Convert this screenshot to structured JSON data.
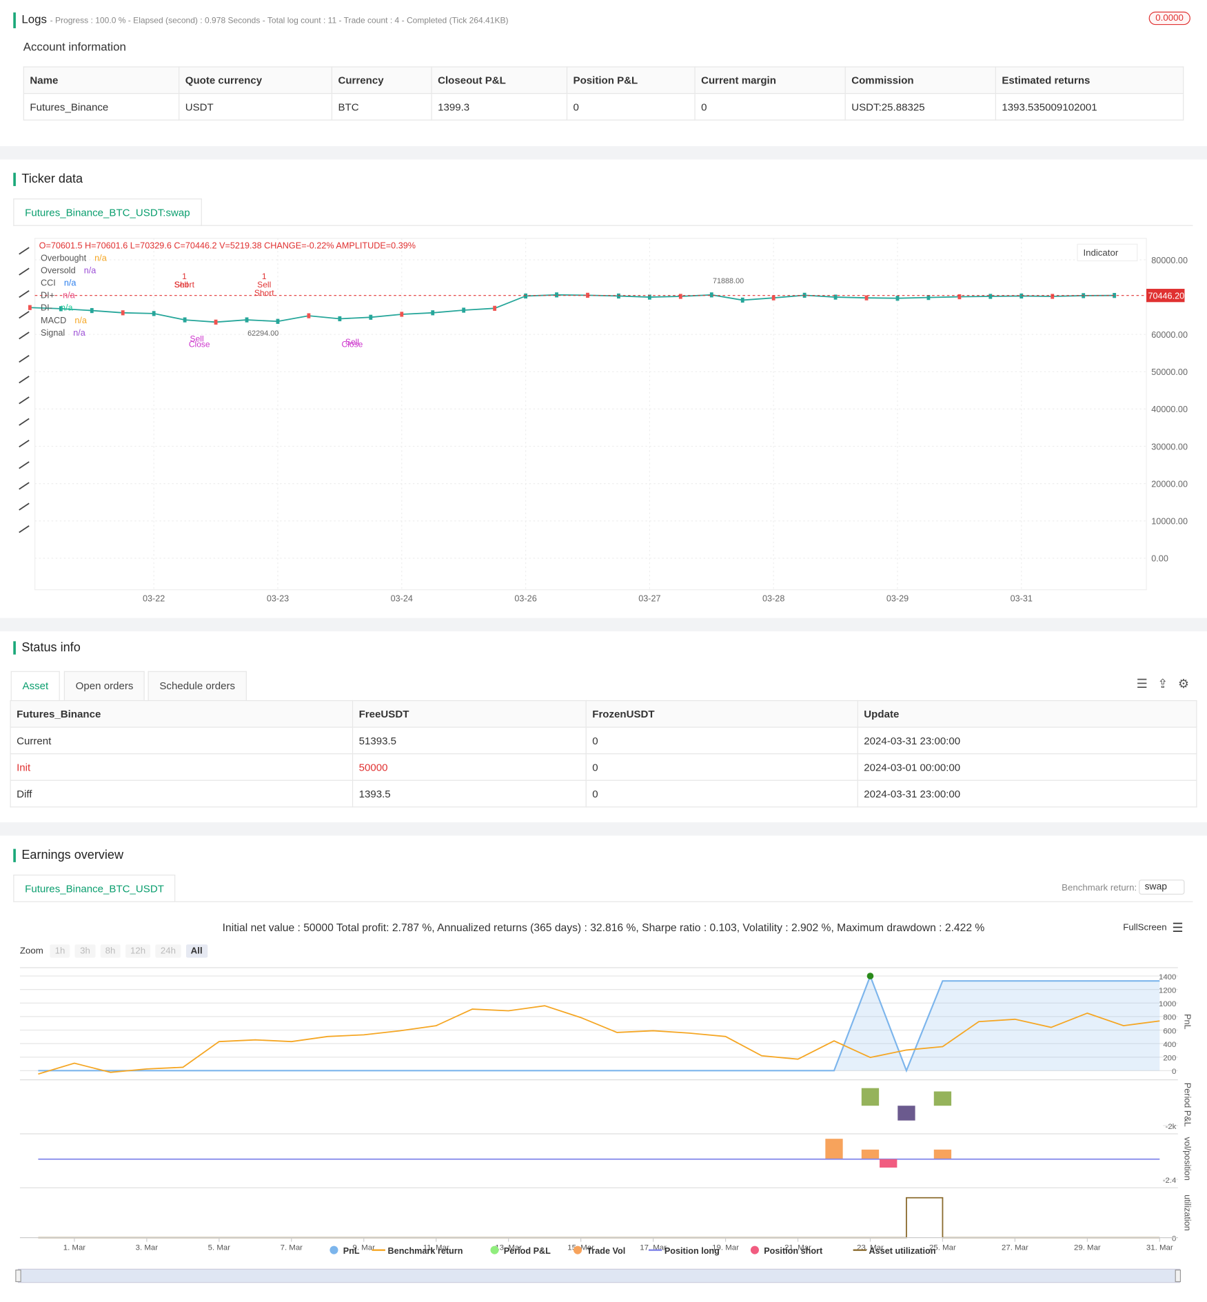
{
  "logs": {
    "title": "Logs",
    "summary": "- Progress : 100.0 % - Elapsed (second) : 0.978  Seconds - Total log count : 11 - Trade count : 4 - Completed (Tick 264.41KB)",
    "badge": "0.0000"
  },
  "account": {
    "title": "Account information",
    "columns": [
      "Name",
      "Quote currency",
      "Currency",
      "Closeout P&L",
      "Position P&L",
      "Current margin",
      "Commission",
      "Estimated returns"
    ],
    "rows": [
      [
        "Futures_Binance",
        "USDT",
        "BTC",
        "1399.3",
        "0",
        "0",
        "USDT:25.88325",
        "1393.535009102001"
      ]
    ]
  },
  "ticker": {
    "title": "Ticker data",
    "tab": "Futures_Binance_BTC_USDT:swap",
    "ohlc": "O=70601.5 H=70601.6 L=70329.6 C=70446.2 V=5219.38 CHANGE=-0.22% AMPLITUDE=0.39%",
    "indicator_button": "Indicator",
    "legend": [
      {
        "name": "Overbought",
        "value": "n/a",
        "color": "#f5a623"
      },
      {
        "name": "Oversold",
        "value": "n/a",
        "color": "#9c4fd6"
      },
      {
        "name": "CCI",
        "value": "n/a",
        "color": "#2f80ed"
      },
      {
        "name": "DI+",
        "value": "n/a",
        "color": "#e64980"
      },
      {
        "name": "DI-",
        "value": "n/a",
        "color": "#20c997"
      },
      {
        "name": "MACD",
        "value": "n/a",
        "color": "#f5a623"
      },
      {
        "name": "Signal",
        "value": "n/a",
        "color": "#9c4fd6"
      }
    ]
  },
  "status": {
    "title": "Status info",
    "tabs": [
      "Asset",
      "Open orders",
      "Schedule orders"
    ],
    "columns": [
      "Futures_Binance",
      "FreeUSDT",
      "FrozenUSDT",
      "Update"
    ],
    "rows": [
      [
        "Current",
        "51393.5",
        "0",
        "2024-03-31 23:00:00"
      ],
      [
        "Init",
        "50000",
        "0",
        "2024-03-01 00:00:00"
      ],
      [
        "Diff",
        "1393.5",
        "0",
        "2024-03-31 23:00:00"
      ]
    ]
  },
  "earnings": {
    "title": "Earnings overview",
    "tab": "Futures_Binance_BTC_USDT",
    "benchmark_label": "Benchmark return:",
    "benchmark_value": "swap",
    "fullscreen": "FullScreen",
    "zoom_label": "Zoom",
    "zoom_options": [
      "1h",
      "3h",
      "8h",
      "12h",
      "24h",
      "All"
    ]
  },
  "chart_data": [
    {
      "type": "line",
      "color": "#26a69a",
      "categories": [
        null,
        null,
        null,
        null,
        "03-22",
        null,
        null,
        null,
        "03-23",
        null,
        null,
        null,
        "03-24",
        null,
        null,
        null,
        "03-26",
        null,
        null,
        null,
        "03-27",
        null,
        null,
        null,
        "03-28",
        null,
        null,
        null,
        "03-29",
        null,
        null,
        null,
        "03-31",
        null,
        null,
        null
      ],
      "values": [
        67200,
        66900,
        66400,
        65800,
        65600,
        63900,
        63300,
        63900,
        63500,
        65000,
        64200,
        64600,
        65400,
        65800,
        66500,
        67000,
        70300,
        70600,
        70500,
        70300,
        70000,
        70200,
        70600,
        69200,
        69800,
        70500,
        70000,
        69800,
        69700,
        69900,
        70100,
        70200,
        70300,
        70200,
        70400,
        70446.2
      ],
      "ylim": [
        -8460,
        85750
      ],
      "yticks": [
        {
          "value": 0,
          "label": "0.00"
        },
        {
          "value": 10000,
          "label": "10000.00"
        },
        {
          "value": 20000,
          "label": "20000.00"
        },
        {
          "value": 30000,
          "label": "30000.00"
        },
        {
          "value": 40000,
          "label": "40000.00"
        },
        {
          "value": 50000,
          "label": "50000.00"
        },
        {
          "value": 60000,
          "label": "60000.00"
        },
        {
          "value": 80000,
          "label": "80000.00"
        }
      ],
      "grid": true,
      "last_price": {
        "value": 70446.2,
        "label": "70446.20"
      },
      "annotations": [
        {
          "value": 71888,
          "label": "71888.00"
        },
        {
          "value": 62294,
          "label": "62294.00"
        }
      ],
      "signals": [
        "1",
        "Short",
        "Sell",
        "1",
        "Short",
        "Sell",
        "Close",
        "Sell",
        "Close",
        "Sell"
      ]
    },
    {
      "type": "panels",
      "title": "Initial net value : 50000 Total profit: 2.787 %, Annualized returns (365 days) : 32.816 %, Sharpe ratio : 0.103, Volatility : 2.902 %, Maximum drawdown : 2.422 %",
      "xlim": [
        0,
        31
      ],
      "xticks": [
        {
          "value": 1,
          "label": "1. Mar"
        },
        {
          "value": 3,
          "label": "3. Mar"
        },
        {
          "value": 5,
          "label": "5. Mar"
        },
        {
          "value": 7,
          "label": "7. Mar"
        },
        {
          "value": 9,
          "label": "9. Mar"
        },
        {
          "value": 11,
          "label": "11. Mar"
        },
        {
          "value": 13,
          "label": "13. Mar"
        },
        {
          "value": 15,
          "label": "15. Mar"
        },
        {
          "value": 17,
          "label": "17. Mar"
        },
        {
          "value": 19,
          "label": "19. Mar"
        },
        {
          "value": 21,
          "label": "21. Mar"
        },
        {
          "value": 23,
          "label": "23. Mar"
        },
        {
          "value": 25,
          "label": "25. Mar"
        },
        {
          "value": 27,
          "label": "27. Mar"
        },
        {
          "value": 29,
          "label": "29. Mar"
        },
        {
          "value": 31,
          "label": "31. Mar"
        }
      ],
      "panels": [
        {
          "ylabel": "PnL",
          "ylim": [
            -74,
            1523
          ],
          "yticks": [
            0,
            200,
            400,
            600,
            800,
            1000,
            1200,
            1400
          ],
          "grid": true,
          "series": [
            {
              "name": "PnL",
              "color": "#7cb5ec",
              "type": "area",
              "x": [
                0,
                22,
                23,
                24,
                25,
                31
              ],
              "values": [
                0,
                0,
                1399.3,
                0,
                1327,
                1327
              ]
            },
            {
              "name": "Benchmark return",
              "color": "#f5a623",
              "type": "line",
              "x": [
                0,
                1,
                2,
                3,
                4,
                5,
                6,
                7,
                8,
                9,
                10,
                11,
                12,
                13,
                14,
                15,
                16,
                17,
                18,
                19,
                20,
                21,
                22,
                23,
                24,
                25,
                26,
                27,
                28,
                29,
                30,
                31
              ],
              "values": [
                -50,
                110,
                -25,
                25,
                50,
                430,
                455,
                430,
                505,
                530,
                590,
                665,
                910,
                885,
                960,
                785,
                565,
                590,
                555,
                505,
                220,
                170,
                440,
                195,
                305,
                355,
                725,
                760,
                640,
                850,
                665,
                735
              ]
            }
          ]
        },
        {
          "ylabel": "Period P&L",
          "ylim": [
            -2400,
            2600
          ],
          "yticks": [
            {
              "value": -2000,
              "label": "-2k"
            }
          ],
          "series": [
            {
              "name": "Period P&L",
              "color": "#90ed7d",
              "type": "column",
              "x": [
                23,
                24,
                25
              ],
              "values": [
                1767,
                -1483,
                1433
              ]
            }
          ]
        },
        {
          "ylabel": "vol/position",
          "ylim": [
            -2.9,
            3
          ],
          "yticks": [
            -2.4
          ],
          "series": [
            {
              "name": "Trade Vol",
              "color": "#f7a35c",
              "type": "column",
              "x": [
                22,
                23,
                25
              ],
              "values": [
                2.41,
                1.13,
                1.13
              ]
            },
            {
              "name": "Position long",
              "color": "#8085e9",
              "type": "line",
              "x": [
                0,
                31
              ],
              "values": [
                0,
                0
              ]
            },
            {
              "name": "Position short",
              "color": "#f15c80",
              "type": "column",
              "x": [
                23.5
              ],
              "values": [
                -1
              ]
            }
          ]
        },
        {
          "ylabel": "utilization",
          "ylim": [
            0,
            1.25
          ],
          "yticks": [
            0
          ],
          "series": [
            {
              "name": "Asset utilization",
              "color": "#8b6b2e",
              "type": "line",
              "x": [
                0,
                24,
                24,
                25,
                25,
                31
              ],
              "values": [
                0,
                0,
                1,
                1,
                0,
                0
              ]
            }
          ]
        }
      ]
    }
  ]
}
